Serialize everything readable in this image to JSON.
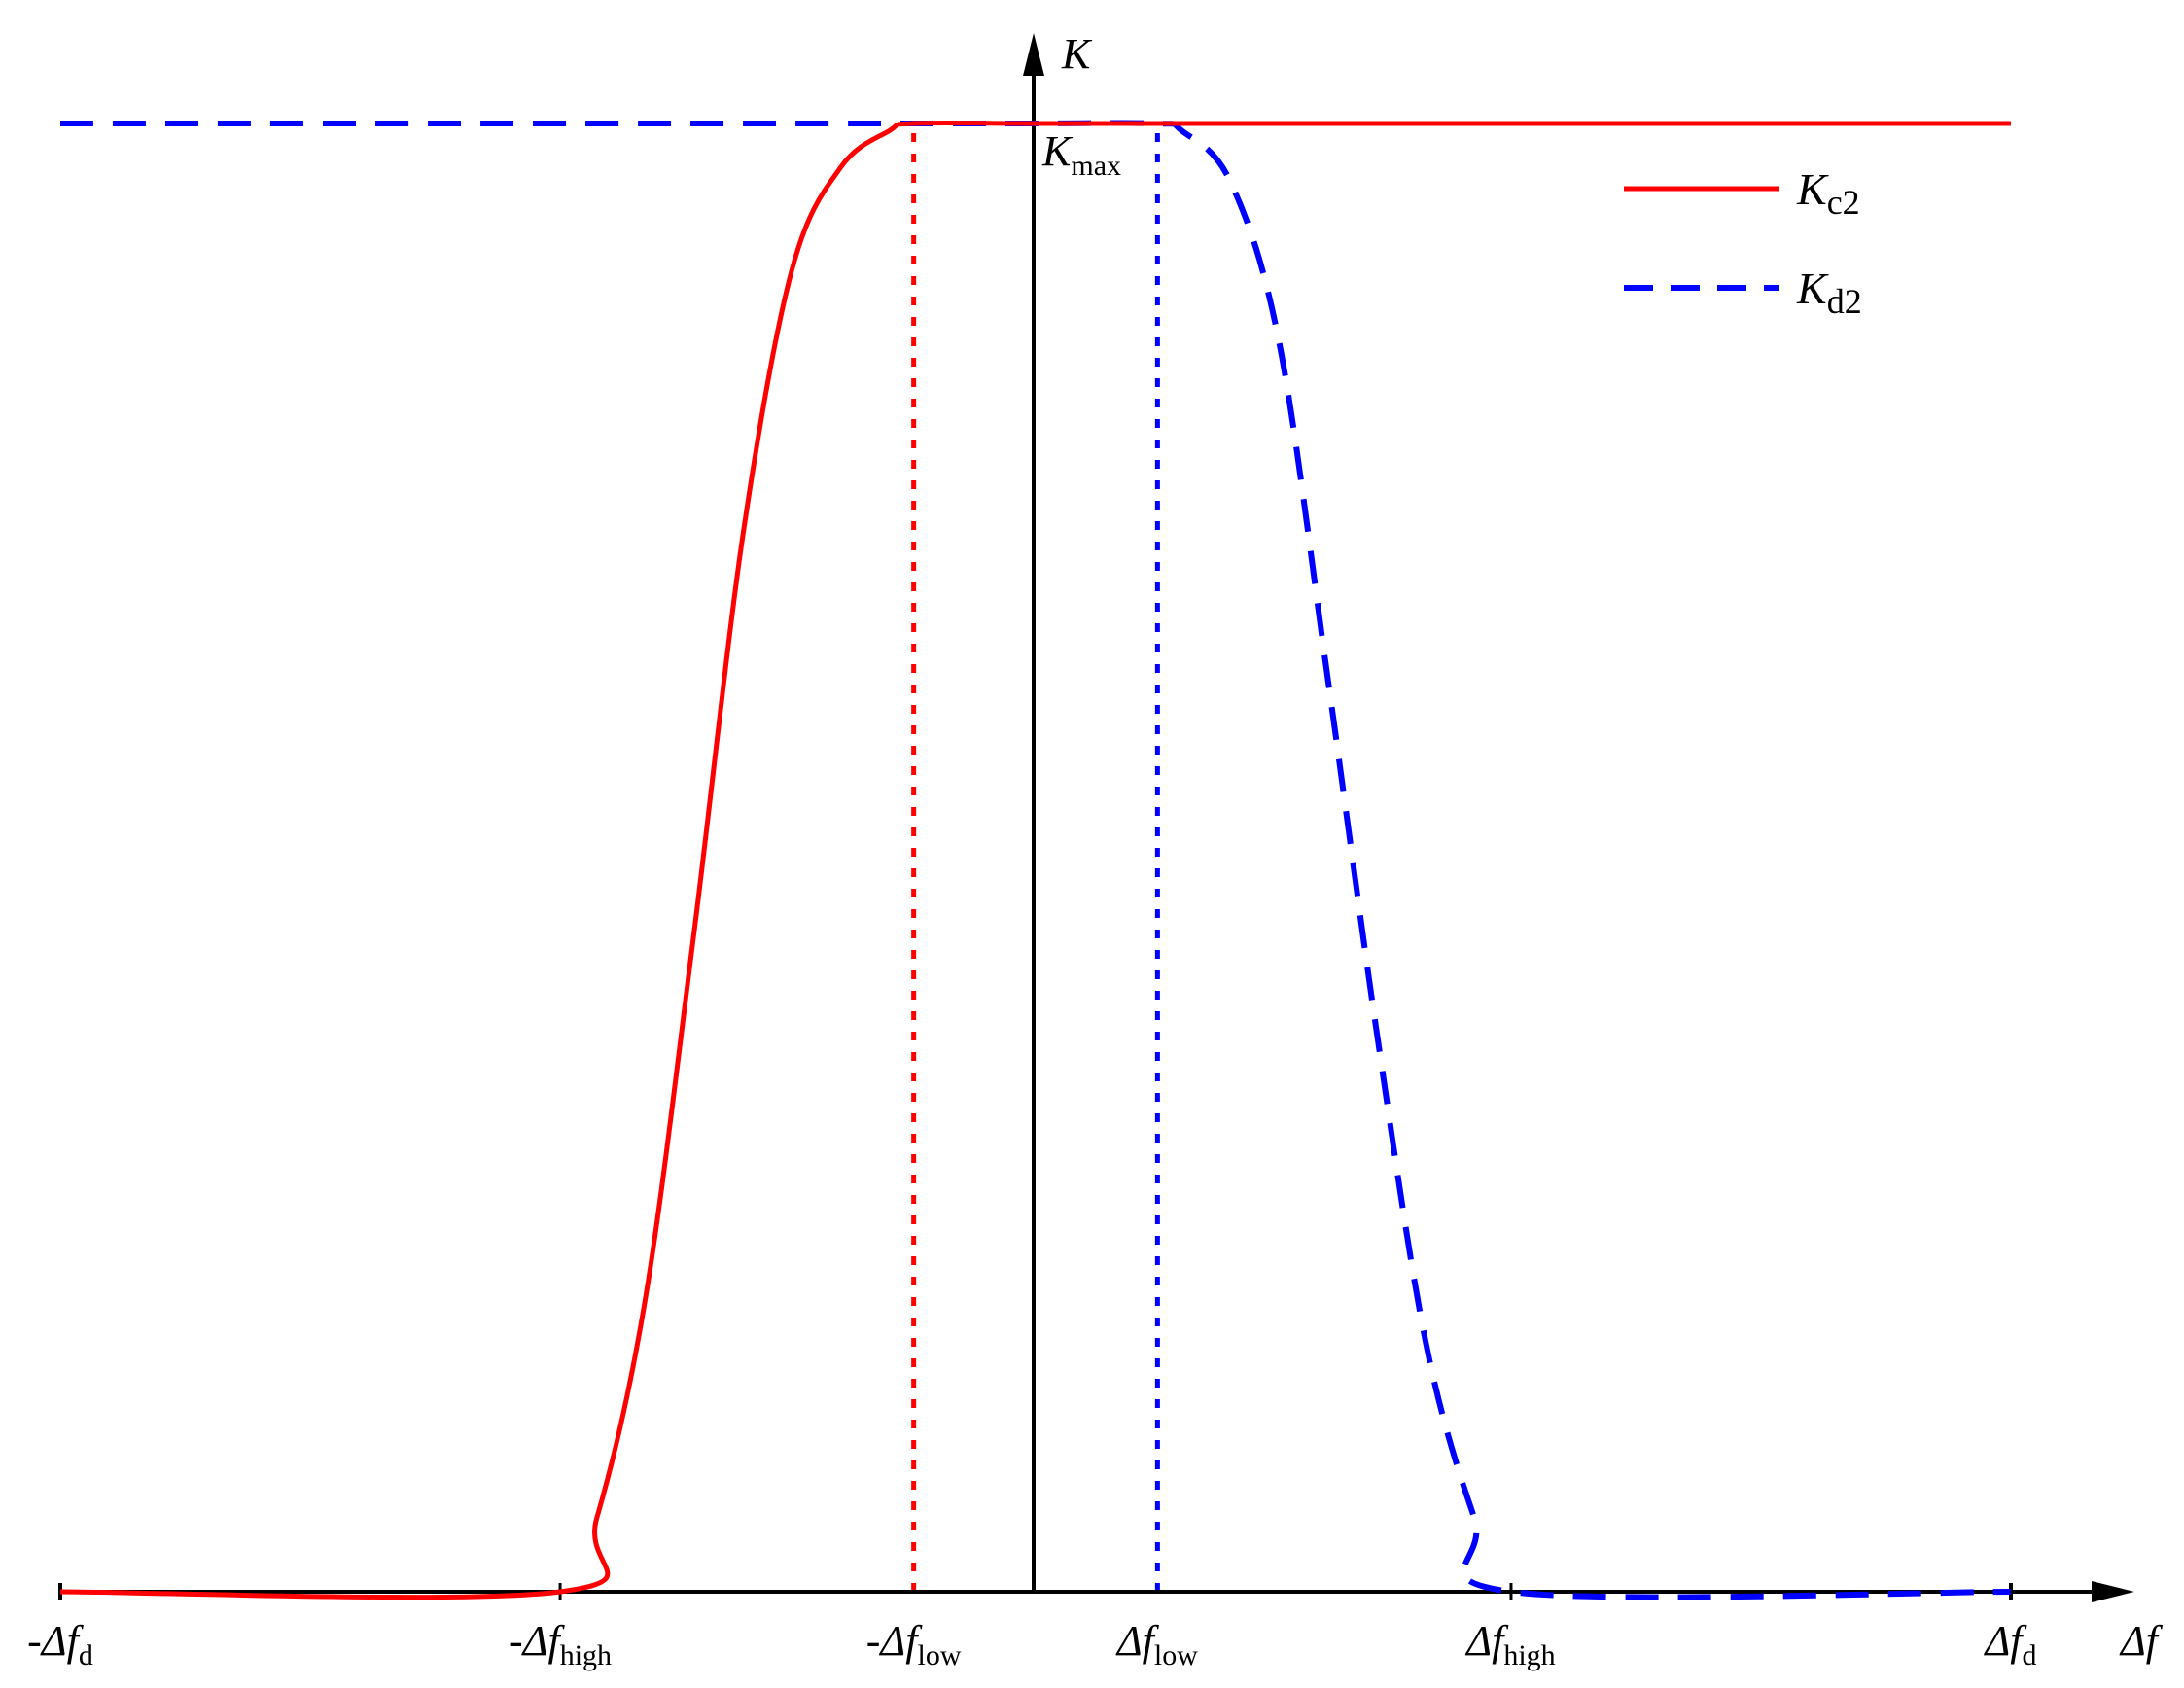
{
  "chart_data": {
    "type": "line",
    "title": "",
    "xaxis": {
      "label": {
        "italic": "Δf",
        "sub": ""
      },
      "ticks": [
        {
          "x": -4.0,
          "prefix": "-",
          "italic": "Δf",
          "sub": "d"
        },
        {
          "x": -1.95,
          "prefix": "-",
          "italic": "Δf",
          "sub": "high"
        },
        {
          "x": -0.5,
          "prefix": "-",
          "italic": "Δf",
          "sub": "low"
        },
        {
          "x": 0.5,
          "prefix": "",
          "italic": "Δf",
          "sub": "low"
        },
        {
          "x": 1.95,
          "prefix": "",
          "italic": "Δf",
          "sub": "high"
        },
        {
          "x": 4.0,
          "prefix": "",
          "italic": "Δf",
          "sub": "d"
        }
      ],
      "range": [
        -4.0,
        4.0
      ]
    },
    "yaxis": {
      "label": {
        "italic": "K",
        "sub": ""
      },
      "ticks": [
        {
          "y": 1.0,
          "italic": "K",
          "sub": "max"
        }
      ],
      "range": [
        0,
        1.0
      ]
    },
    "series": [
      {
        "name": {
          "italic": "K",
          "sub": "c2"
        },
        "color": "#ff0000",
        "style": "solid",
        "points": [
          [
            -4.0,
            0
          ],
          [
            -1.95,
            0
          ],
          [
            -1.8,
            0.05
          ],
          [
            -1.6,
            0.2
          ],
          [
            -1.4,
            0.45
          ],
          [
            -1.2,
            0.72
          ],
          [
            -1.0,
            0.9
          ],
          [
            -0.8,
            0.97
          ],
          [
            -0.6,
            0.995
          ],
          [
            -0.5,
            1.0
          ],
          [
            0.0,
            1.0
          ],
          [
            1.0,
            1.0
          ],
          [
            2.0,
            1.0
          ],
          [
            4.0,
            1.0
          ]
        ]
      },
      {
        "name": {
          "italic": "K",
          "sub": "d2"
        },
        "color": "#0000ff",
        "style": "dashed",
        "points": [
          [
            -4.0,
            1.0
          ],
          [
            -2.0,
            1.0
          ],
          [
            -0.5,
            1.0
          ],
          [
            0.0,
            1.0
          ],
          [
            0.5,
            1.0
          ],
          [
            0.6,
            0.995
          ],
          [
            0.8,
            0.96
          ],
          [
            1.0,
            0.85
          ],
          [
            1.2,
            0.62
          ],
          [
            1.4,
            0.38
          ],
          [
            1.6,
            0.17
          ],
          [
            1.8,
            0.05
          ],
          [
            1.95,
            0
          ],
          [
            4.0,
            0
          ]
        ]
      }
    ],
    "reference_lines": [
      {
        "x": -0.5,
        "color": "#ff0000",
        "style": "dotted",
        "from": 0,
        "to": 1.0
      },
      {
        "x": 0.5,
        "color": "#0000ff",
        "style": "dotted",
        "from": 0,
        "to": 1.0
      }
    ],
    "legend": {
      "placement": "top-right"
    },
    "grid": false
  }
}
